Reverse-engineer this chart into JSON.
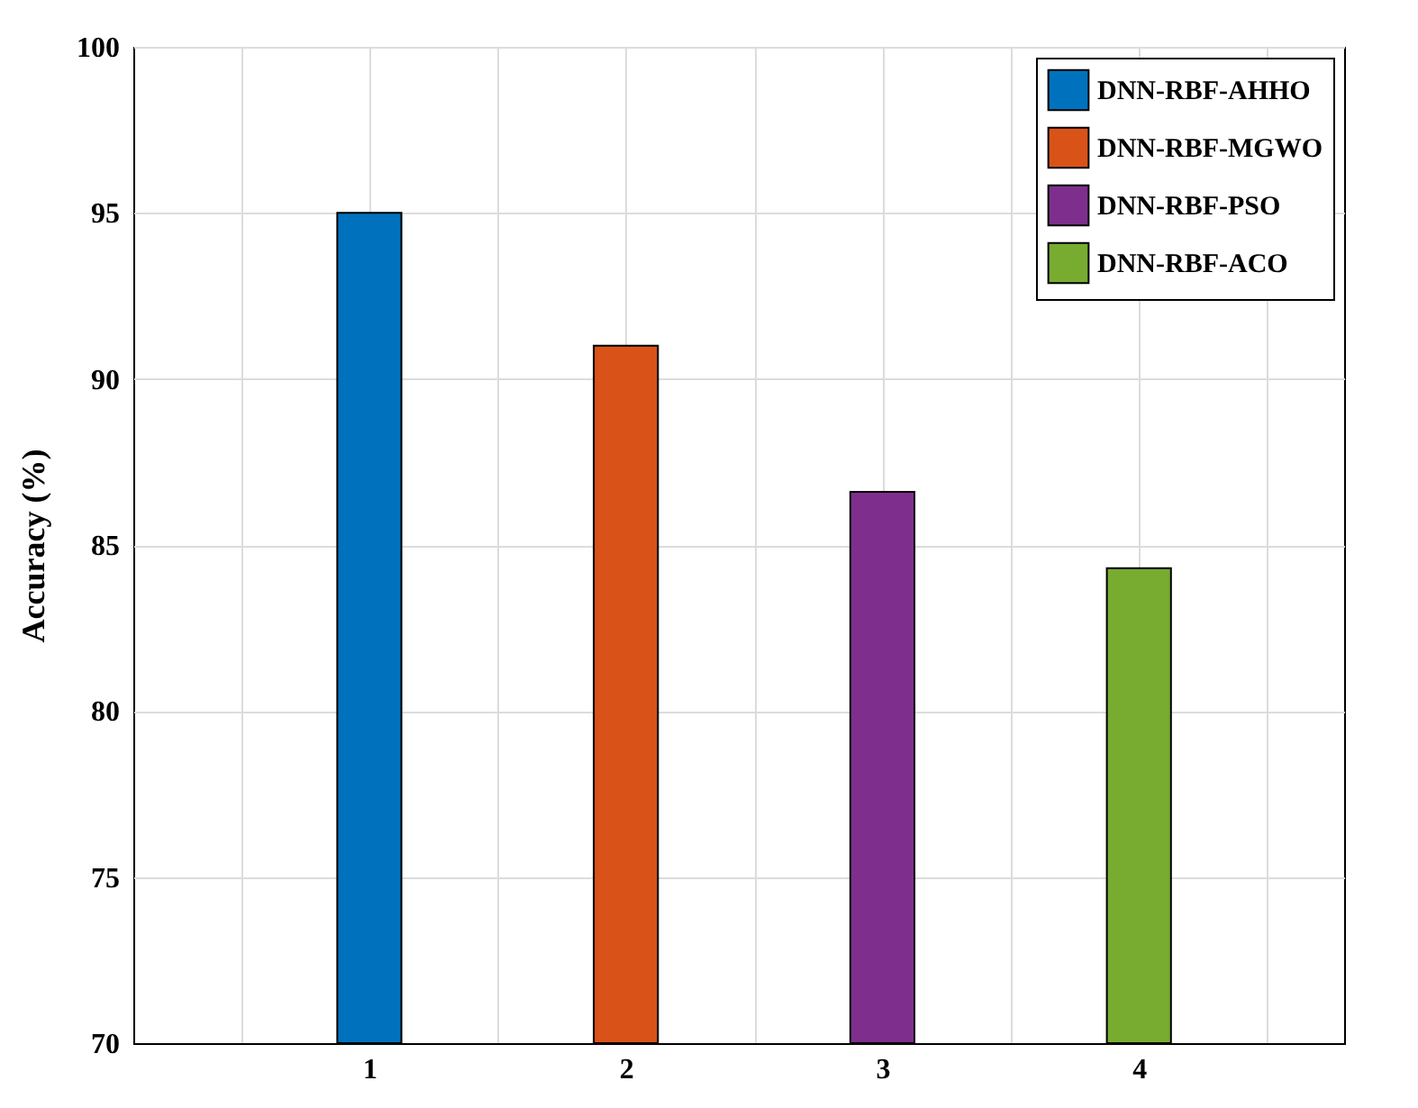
{
  "chart_data": {
    "type": "bar",
    "ylabel": "Accuracy (%)",
    "series": [
      {
        "name": "DNN-RBF-AHHO",
        "color": "#0072bd",
        "x": [
          1
        ],
        "values": [
          95
        ]
      },
      {
        "name": "DNN-RBF-MGWO",
        "color": "#d95319",
        "x": [
          2
        ],
        "values": [
          91
        ]
      },
      {
        "name": "DNN-RBF-PSO",
        "color": "#7e2f8e",
        "x": [
          3
        ],
        "values": [
          86.6
        ]
      },
      {
        "name": "DNN-RBF-ACO",
        "color": "#77ac30",
        "x": [
          4
        ],
        "values": [
          84.3
        ]
      }
    ],
    "xlim": [
      0.08,
      4.8
    ],
    "xticks": [
      {
        "value": 0.5,
        "label": null
      },
      1,
      {
        "value": 1.5,
        "label": null
      },
      2,
      {
        "value": 2.5,
        "label": null
      },
      3,
      {
        "value": 3.5,
        "label": null
      },
      4,
      {
        "value": 4.5,
        "label": null
      }
    ],
    "ylim": [
      70,
      100
    ],
    "yticks": [
      70,
      75,
      80,
      85,
      90,
      95,
      100
    ],
    "grid": true,
    "legend": "top right"
  }
}
